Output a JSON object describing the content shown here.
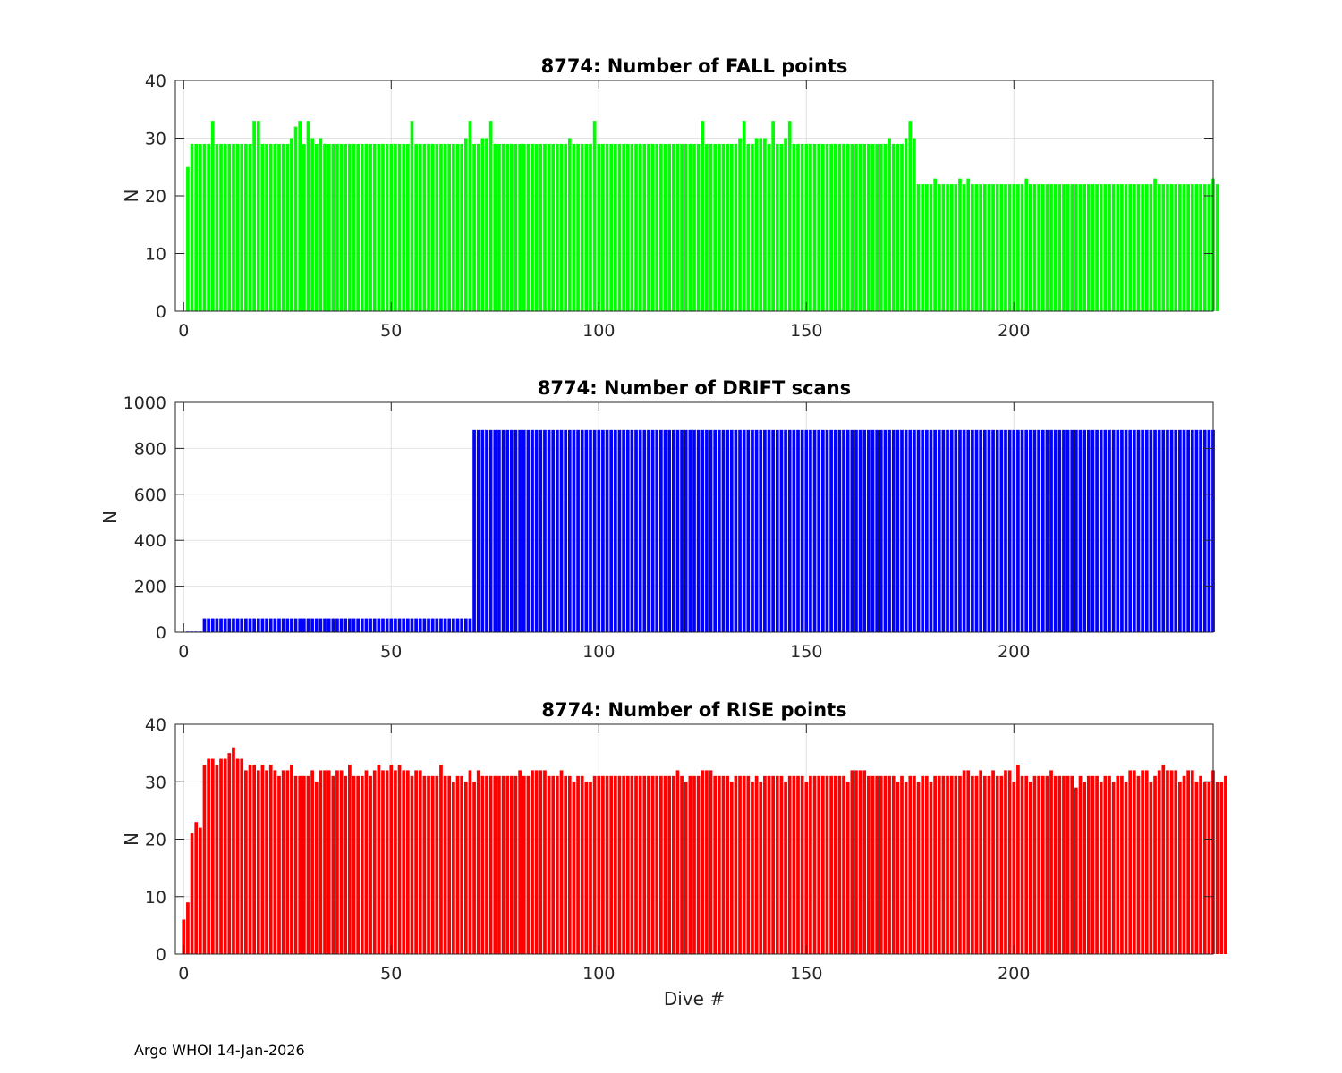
{
  "chart_data": [
    {
      "type": "bar",
      "title": "8774: Number of FALL points",
      "xlabel": "",
      "ylabel": "N",
      "color": "#00ff00",
      "xlim": [
        -2,
        248
      ],
      "ylim": [
        0,
        40
      ],
      "xticks": [
        0,
        50,
        100,
        150,
        200
      ],
      "yticks": [
        0,
        10,
        20,
        30,
        40
      ],
      "grid": true,
      "x_start": 1,
      "values": [
        25,
        29,
        29,
        29,
        29,
        29,
        33,
        29,
        29,
        29,
        29,
        29,
        29,
        29,
        29,
        29,
        33,
        33,
        29,
        29,
        29,
        29,
        29,
        29,
        29,
        30,
        32,
        33,
        29,
        33,
        30,
        29,
        30,
        29,
        29,
        29,
        29,
        29,
        29,
        29,
        29,
        29,
        29,
        29,
        29,
        29,
        29,
        29,
        29,
        29,
        29,
        29,
        29,
        29,
        33,
        29,
        29,
        29,
        29,
        29,
        29,
        29,
        29,
        29,
        29,
        29,
        29,
        30,
        33,
        29,
        29,
        30,
        30,
        33,
        29,
        29,
        29,
        29,
        29,
        29,
        29,
        29,
        29,
        29,
        29,
        29,
        29,
        29,
        29,
        29,
        29,
        29,
        30,
        29,
        29,
        29,
        29,
        29,
        33,
        29,
        29,
        29,
        29,
        29,
        29,
        29,
        29,
        29,
        29,
        29,
        29,
        29,
        29,
        29,
        29,
        29,
        29,
        29,
        29,
        29,
        29,
        29,
        29,
        29,
        33,
        29,
        29,
        29,
        29,
        29,
        29,
        29,
        29,
        30,
        33,
        29,
        29,
        30,
        30,
        30,
        29,
        33,
        29,
        29,
        30,
        33,
        29,
        29,
        29,
        29,
        29,
        29,
        29,
        29,
        29,
        29,
        29,
        29,
        29,
        29,
        29,
        29,
        29,
        29,
        29,
        29,
        29,
        29,
        29,
        30,
        29,
        29,
        29,
        30,
        33,
        30,
        22,
        22,
        22,
        22,
        23,
        22,
        22,
        22,
        22,
        22,
        23,
        22,
        23,
        22,
        22,
        22,
        22,
        22,
        22,
        22,
        22,
        22,
        22,
        22,
        22,
        22,
        23,
        22,
        22,
        22,
        22,
        22,
        22,
        22,
        22,
        22,
        22,
        22,
        22,
        22,
        22,
        22,
        22,
        22,
        22,
        22,
        22,
        22,
        22,
        22,
        22,
        22,
        22,
        22,
        22,
        22,
        22,
        23,
        22,
        22,
        22,
        22,
        22,
        22,
        22,
        22,
        22,
        22,
        22,
        22,
        22,
        23,
        22
      ]
    },
    {
      "type": "bar",
      "title": "8774: Number of DRIFT scans",
      "xlabel": "",
      "ylabel": "N",
      "color": "#0000ff",
      "xlim": [
        -2,
        248
      ],
      "ylim": [
        0,
        1000
      ],
      "xticks": [
        0,
        50,
        100,
        150,
        200
      ],
      "yticks": [
        0,
        200,
        400,
        600,
        800,
        1000
      ],
      "grid": true,
      "x_start": 1,
      "segments": [
        {
          "from": 1,
          "to": 4,
          "value": 3
        },
        {
          "from": 5,
          "to": 69,
          "value": 60
        },
        {
          "from": 70,
          "to": 248,
          "value": 880
        }
      ]
    },
    {
      "type": "bar",
      "title": "8774: Number of RISE points",
      "xlabel": "Dive #",
      "ylabel": "N",
      "color": "#ff0000",
      "xlim": [
        -2,
        248
      ],
      "ylim": [
        0,
        40
      ],
      "xticks": [
        0,
        50,
        100,
        150,
        200
      ],
      "yticks": [
        0,
        10,
        20,
        30,
        40
      ],
      "grid": true,
      "x_start": 0,
      "values": [
        6,
        9,
        21,
        23,
        22,
        33,
        34,
        34,
        33,
        34,
        34,
        35,
        36,
        34,
        34,
        32,
        33,
        33,
        32,
        33,
        32,
        33,
        32,
        31,
        32,
        32,
        33,
        31,
        31,
        31,
        31,
        32,
        30,
        32,
        32,
        32,
        31,
        32,
        32,
        31,
        33,
        31,
        31,
        31,
        32,
        31,
        32,
        33,
        32,
        32,
        33,
        32,
        33,
        32,
        32,
        31,
        32,
        32,
        31,
        31,
        31,
        31,
        33,
        31,
        31,
        30,
        31,
        31,
        30,
        32,
        30,
        32,
        31,
        31,
        31,
        31,
        31,
        31,
        31,
        31,
        31,
        32,
        31,
        31,
        32,
        32,
        32,
        32,
        31,
        31,
        31,
        32,
        31,
        31,
        30,
        31,
        31,
        30,
        30,
        31,
        31,
        31,
        31,
        31,
        31,
        31,
        31,
        31,
        31,
        31,
        31,
        31,
        31,
        31,
        31,
        31,
        31,
        31,
        31,
        32,
        31,
        30,
        31,
        31,
        31,
        32,
        32,
        32,
        31,
        31,
        31,
        31,
        30,
        31,
        31,
        31,
        31,
        30,
        31,
        30,
        31,
        31,
        31,
        31,
        31,
        30,
        31,
        31,
        31,
        31,
        30,
        31,
        31,
        31,
        31,
        31,
        31,
        31,
        31,
        31,
        30,
        32,
        32,
        32,
        32,
        31,
        31,
        31,
        31,
        31,
        31,
        31,
        30,
        31,
        30,
        31,
        31,
        30,
        31,
        31,
        30,
        31,
        31,
        31,
        31,
        31,
        31,
        31,
        32,
        32,
        31,
        31,
        32,
        31,
        31,
        32,
        31,
        31,
        32,
        32,
        30,
        33,
        31,
        31,
        30,
        31,
        31,
        31,
        31,
        32,
        31,
        31,
        31,
        31,
        31,
        29,
        31,
        30,
        31,
        31,
        31,
        30,
        31,
        31,
        30,
        31,
        31,
        30,
        32,
        32,
        31,
        32,
        32,
        30,
        31,
        32,
        33,
        32,
        32,
        32,
        30,
        31,
        32,
        32,
        30,
        31,
        30,
        30,
        32,
        30,
        30,
        31
      ]
    }
  ],
  "footer": "Argo WHOI 14-Jan-2026"
}
